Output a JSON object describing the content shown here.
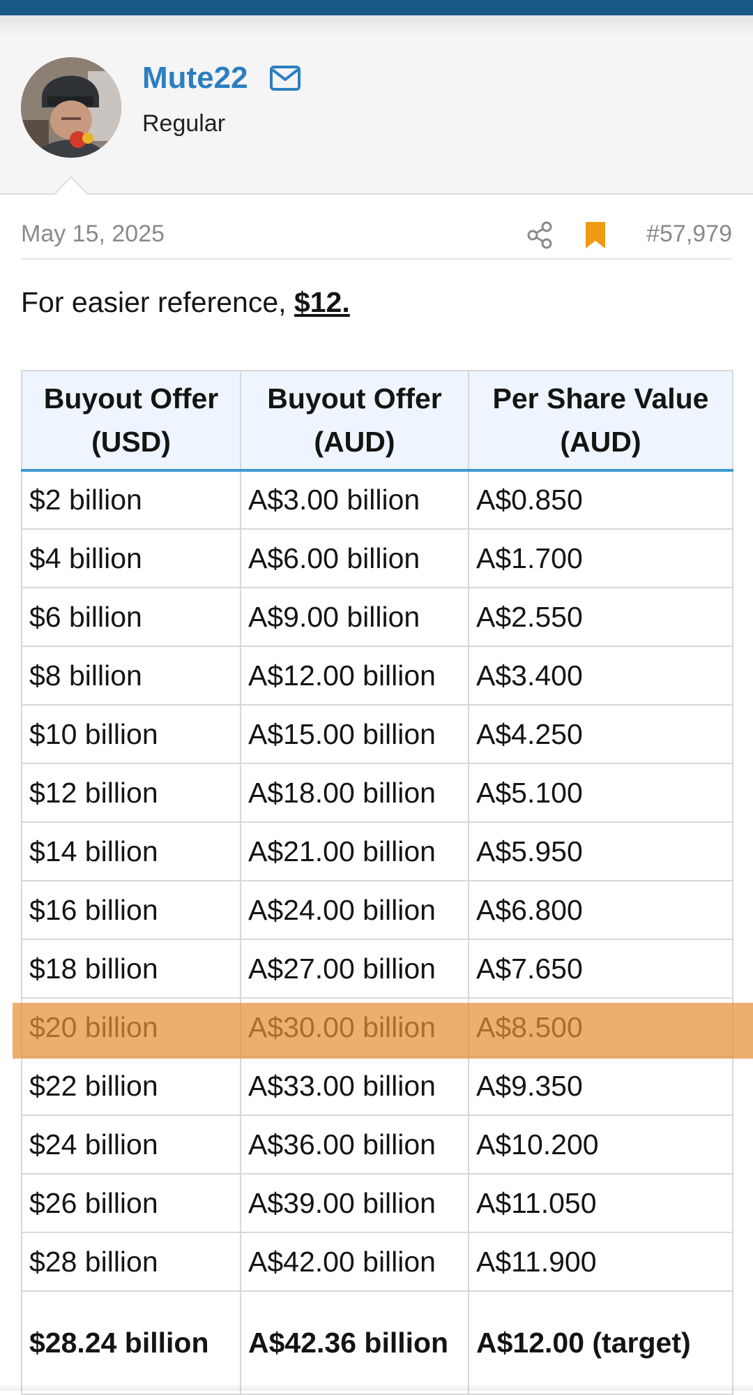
{
  "post": {
    "author": {
      "name": "Mute22",
      "role": "Regular"
    },
    "date": "May 15, 2025",
    "number": "#57,979",
    "text_prefix": "For easier reference, ",
    "text_link": "$12."
  },
  "icons": {
    "mail": "envelope-icon",
    "share": "share-icon",
    "bookmark": "bookmark-icon"
  },
  "colors": {
    "top_bar": "#185886",
    "username": "#2d7ec0",
    "bookmark": "#f09a13",
    "table_header_bg": "#eef5fe",
    "header_border": "#3d97d4",
    "highlight": "#e88f38"
  },
  "table": {
    "headers": [
      [
        "Buyout Offer",
        "(USD)"
      ],
      [
        "Buyout Offer",
        "(AUD)"
      ],
      [
        "Per Share Value",
        "(AUD)"
      ]
    ],
    "rows": [
      [
        "$2 billion",
        "A$3.00 billion",
        "A$0.850"
      ],
      [
        "$4 billion",
        "A$6.00 billion",
        "A$1.700"
      ],
      [
        "$6 billion",
        "A$9.00 billion",
        "A$2.550"
      ],
      [
        "$8 billion",
        "A$12.00 billion",
        "A$3.400"
      ],
      [
        "$10 billion",
        "A$15.00 billion",
        "A$4.250"
      ],
      [
        "$12 billion",
        "A$18.00 billion",
        "A$5.100"
      ],
      [
        "$14 billion",
        "A$21.00 billion",
        "A$5.950"
      ],
      [
        "$16 billion",
        "A$24.00 billion",
        "A$6.800"
      ],
      [
        "$18 billion",
        "A$27.00 billion",
        "A$7.650"
      ],
      [
        "$20 billion",
        "A$30.00 billion",
        "A$8.500"
      ],
      [
        "$22 billion",
        "A$33.00 billion",
        "A$9.350"
      ],
      [
        "$24 billion",
        "A$36.00 billion",
        "A$10.200"
      ],
      [
        "$26 billion",
        "A$39.00 billion",
        "A$11.050"
      ],
      [
        "$28 billion",
        "A$42.00 billion",
        "A$11.900"
      ]
    ],
    "highlighted_row": 9,
    "last_row": [
      "$28.24 billion",
      "A$42.36 billion",
      "A$12.00 (target)"
    ]
  }
}
